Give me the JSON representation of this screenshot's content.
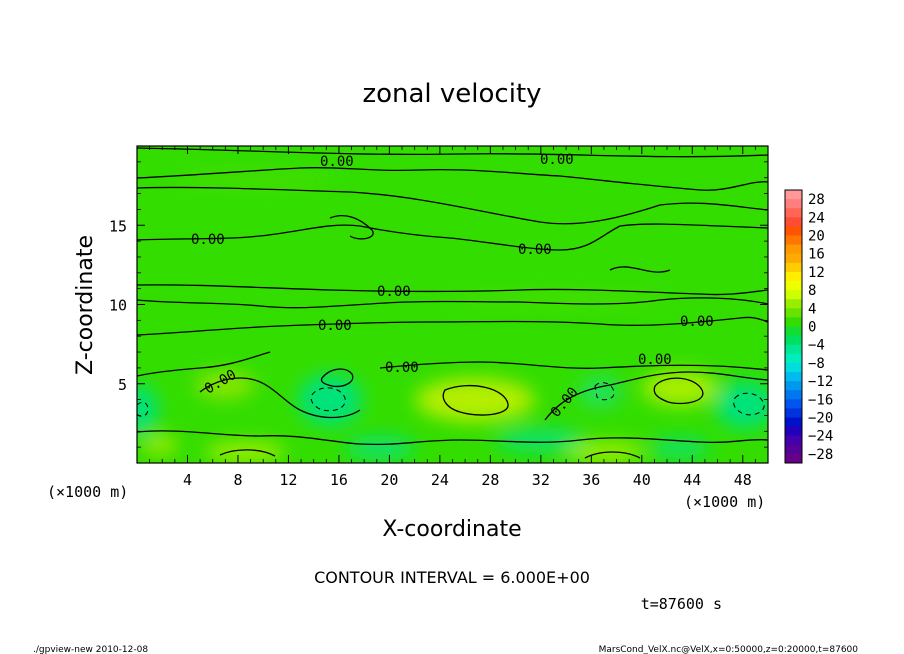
{
  "chart_data": {
    "type": "heatmap",
    "title": "zonal velocity",
    "xlabel": "X-coordinate",
    "ylabel": "Z-coordinate",
    "x_unit": "(×1000 m)",
    "y_unit": "(×1000 m)",
    "xlim": [
      0,
      50
    ],
    "ylim": [
      0,
      20
    ],
    "x_ticks": [
      4,
      8,
      12,
      16,
      20,
      24,
      28,
      32,
      36,
      40,
      44,
      48
    ],
    "y_ticks": [
      5,
      10,
      15
    ],
    "colorbar_ticks": [
      28,
      24,
      20,
      16,
      12,
      8,
      4,
      0,
      -4,
      -8,
      -12,
      -16,
      -20,
      -24,
      -28
    ],
    "colorbar_range": [
      -30,
      30
    ],
    "contour_labels": [
      "0.00",
      "0.00",
      "0.00",
      "0.00",
      "0.00",
      "0.00",
      "0.00",
      "0.00",
      "0.00",
      "0.00",
      "0.00",
      "0.00"
    ],
    "contour_interval_text": "CONTOUR INTERVAL = 6.000E+00",
    "time_text": "t=87600 s",
    "dominant_values": "near 0 everywhere; weak maxima ~+4 to +6 near z=3-4 km at x≈25-28 and x≈42; weak minima ~-4 near the surface and at x≈14-16, x≈46-50"
  },
  "footer": {
    "left": "./gpview-new 2010-12-08",
    "right": "MarsCond_VelX.nc@VelX,x=0:50000,z=0:20000,t=87600"
  },
  "colors": {
    "zero": "#33dd00",
    "positive_weak": "#a8ee00",
    "negative_weak": "#00e877",
    "background": "#ffffff"
  }
}
